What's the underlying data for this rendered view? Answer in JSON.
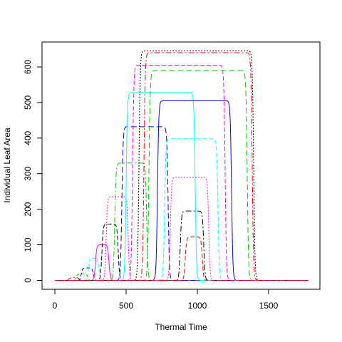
{
  "chart_data": {
    "type": "line",
    "title": "",
    "xlabel": "Thermal Time",
    "ylabel": "Individual Leaf Area",
    "xlim": [
      -90,
      1860
    ],
    "ylim": [
      -25,
      670
    ],
    "xticks": [
      0,
      500,
      1000,
      1500
    ],
    "yticks": [
      0,
      100,
      200,
      300,
      400,
      500,
      600
    ],
    "grid": false,
    "legend": "none",
    "x_range": [
      0,
      1780
    ],
    "series": [
      {
        "peak": 8,
        "start": 100,
        "end": 170,
        "color": "#ff0000",
        "dash": "8,3,2,3"
      },
      {
        "peak": 18,
        "start": 150,
        "end": 230,
        "color": "#00cd00",
        "dash": "4,3"
      },
      {
        "peak": 35,
        "start": 185,
        "end": 270,
        "color": "#0000ff",
        "dash": "5,3"
      },
      {
        "peak": 62,
        "start": 235,
        "end": 310,
        "color": "#00ffff",
        "dash": "4,3"
      },
      {
        "peak": 100,
        "start": 285,
        "end": 380,
        "color": "#ff00ff",
        "dash": ""
      },
      {
        "peak": 158,
        "start": 330,
        "end": 445,
        "color": "#000000",
        "dash": "6,3"
      },
      {
        "peak": 235,
        "start": 360,
        "end": 515,
        "color": "#ff00ff",
        "dash": "2,2"
      },
      {
        "peak": 330,
        "start": 420,
        "end": 645,
        "color": "#00cd00",
        "dash": "8,3,2,3"
      },
      {
        "peak": 432,
        "start": 470,
        "end": 795,
        "color": "#0000ff",
        "dash": "8,4"
      },
      {
        "peak": 528,
        "start": 500,
        "end": 985,
        "color": "#00ffff",
        "dash": ""
      },
      {
        "peak": 605,
        "start": 545,
        "end": 1195,
        "color": "#ff00ff",
        "dash": "6,3"
      },
      {
        "peak": 645,
        "start": 590,
        "end": 1395,
        "color": "#000000",
        "dash": "2,2"
      },
      {
        "peak": 640,
        "start": 625,
        "end": 1385,
        "color": "#ff0000",
        "dash": "8,3,2,3"
      },
      {
        "peak": 590,
        "start": 660,
        "end": 1350,
        "color": "#00cd00",
        "dash": "8,4"
      },
      {
        "peak": 505,
        "start": 720,
        "end": 1240,
        "color": "#0000ff",
        "dash": ""
      },
      {
        "peak": 398,
        "start": 770,
        "end": 1145,
        "color": "#00ffff",
        "dash": "6,3"
      },
      {
        "peak": 290,
        "start": 810,
        "end": 1080,
        "color": "#ff00ff",
        "dash": "2,2"
      },
      {
        "peak": 195,
        "start": 880,
        "end": 1045,
        "color": "#000000",
        "dash": "8,3,2,3"
      },
      {
        "peak": 122,
        "start": 915,
        "end": 1035,
        "color": "#ff0000",
        "dash": "6,3"
      }
    ]
  }
}
